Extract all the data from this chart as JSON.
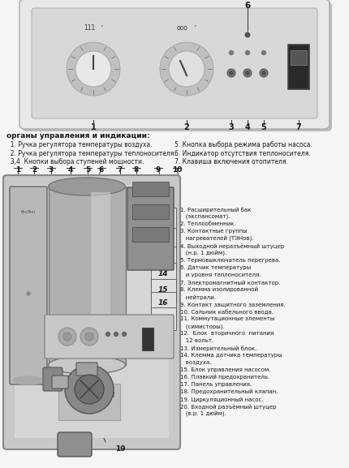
{
  "bg_color": "#f5f5f5",
  "fig_width": 4.3,
  "fig_height": 5.77,
  "font_color": "#1a1a1a",
  "line_color": "#333333",
  "top_panel_label": "органы управления и индикации:",
  "top_labels_left": [
    "  1. Ручка регулятора температуры воздуха.",
    "  2. Ручка регулятора температуры теплоносителя.",
    "  3,4  Кнопки выбора ступеней мощности."
  ],
  "top_labels_right": [
    "5. Кнопка выбора режима работы насоса.",
    "6. Индикатор отсутствия теплоносителя.",
    "7. Клавиша включения отопителя."
  ],
  "right_text": [
    "1. Расширительный бак",
    "   (экспансомат).",
    "2. Теплообменник.",
    "3. Контактные группы",
    "   нагревателей (ТЭНов).",
    "4. Выходной неразъёмный штуцер",
    "   (н.р. 1 дюйм).",
    "5. Термовыключатель перегрева.",
    "6. Датчик температуры",
    "   и уровня теплоносителя.",
    "7. Электромагнитный контактор.",
    "8. Клемма изолированной",
    "   нейтрали.",
    "9. Контакт защитного заземления.",
    "10. Сальник кабельного ввода.",
    "11. Коммутационные элементы",
    "   (симисторы).",
    "12.  Блок  вторичного  питания",
    "   12 вольт.",
    "13. Измерительный блок.",
    "14. Клемма датчика температуры",
    "   воздуха.",
    "15. Блок управления насосом.",
    "16. Плавкий предохранитель.",
    "17. Панель управления.",
    "18. Предохранительный клапан.",
    "19. Циркуляционный насос.",
    "20. Входной разъёмный штуцер",
    "   (в.р. 1 дюйм)."
  ]
}
